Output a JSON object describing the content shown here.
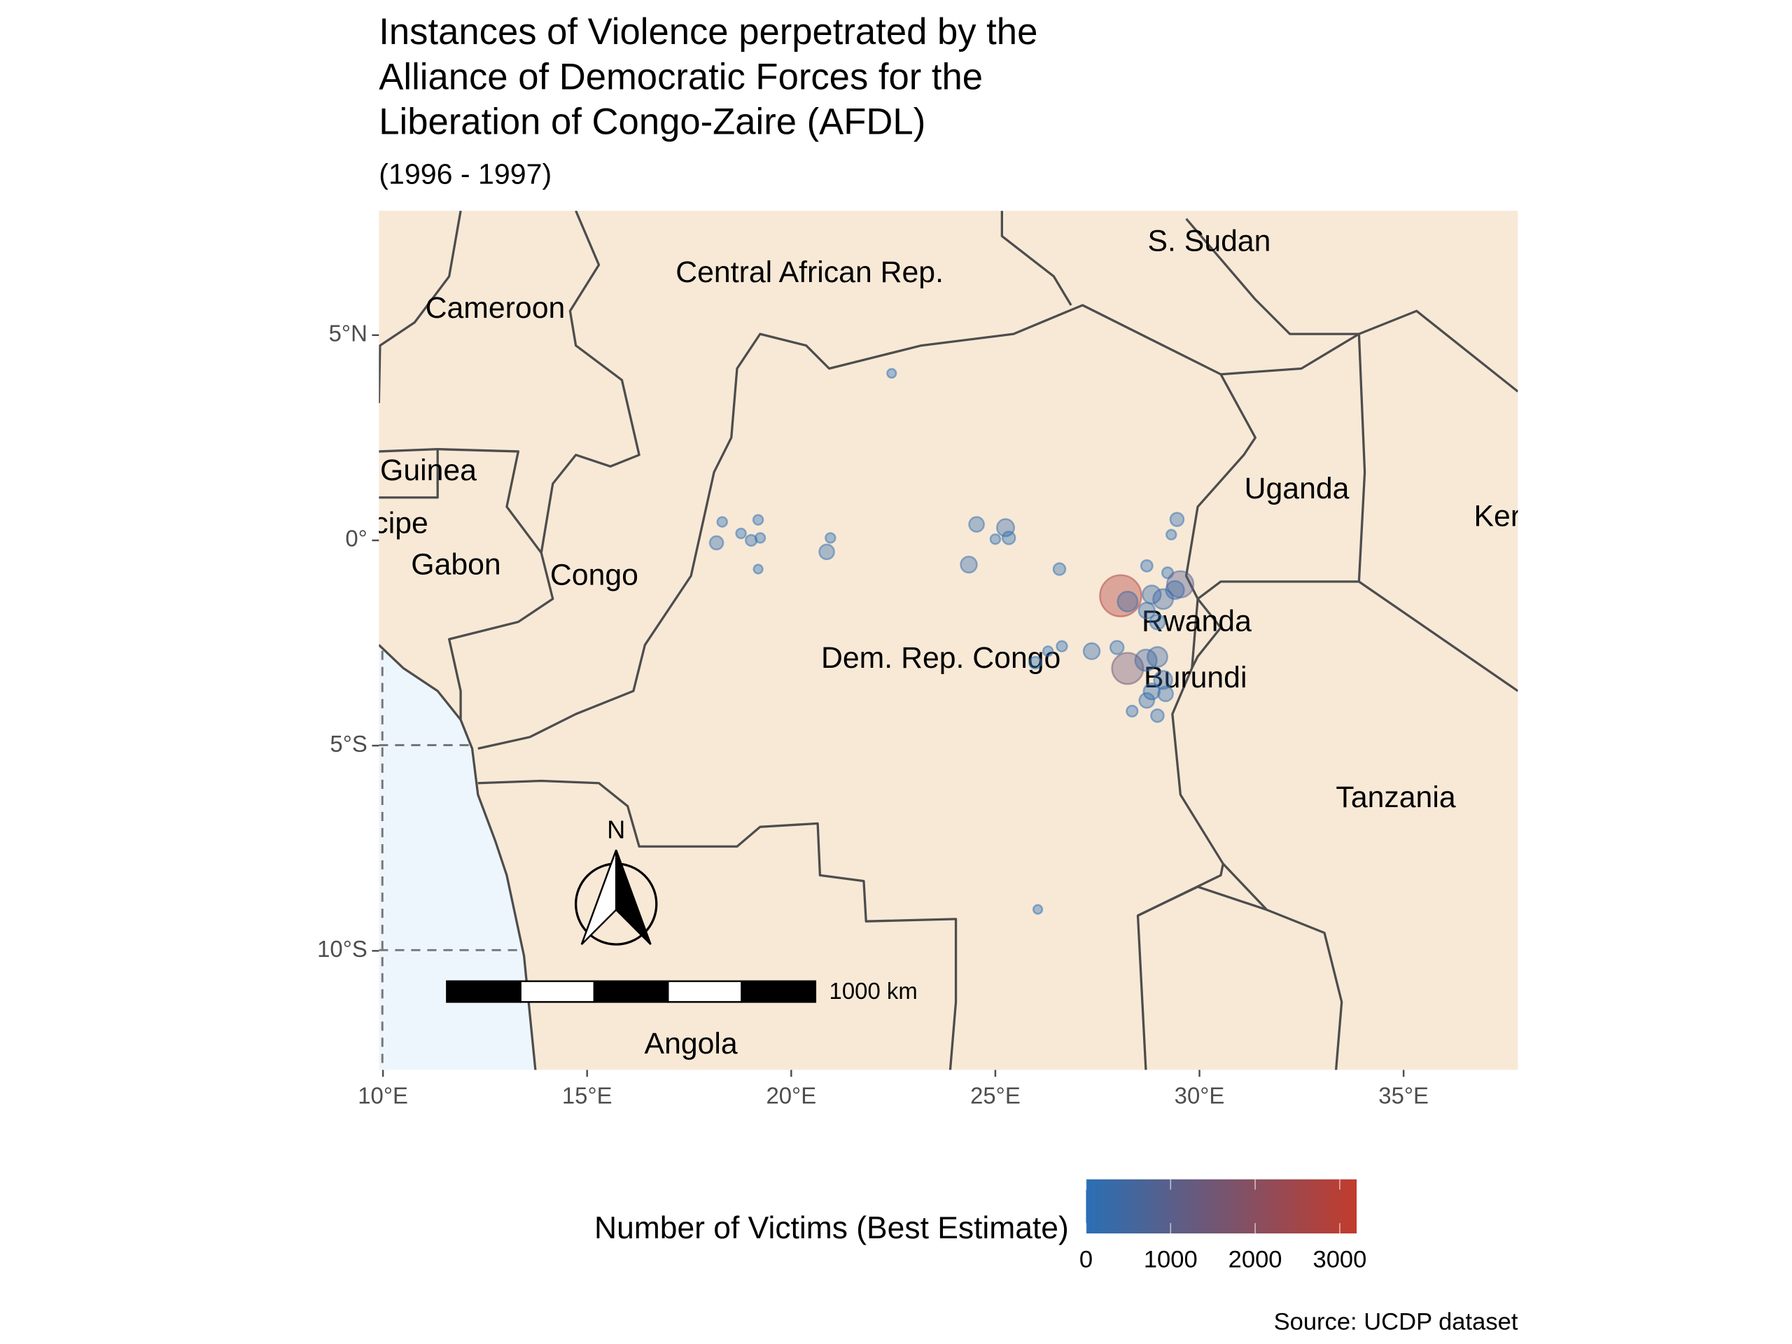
{
  "chart_data": {
    "type": "scatter",
    "title": [
      "Instances of Violence perpetrated by the",
      "Alliance of Democratic Forces for the",
      "Liberation of Congo-Zaire (AFDL)"
    ],
    "subtitle": "(1996 - 1997)",
    "caption": "Source: UCDP dataset",
    "legend_title": "Number of Victims (Best Estimate)",
    "colors": [
      "#2a6fb5",
      "#c23b2c"
    ],
    "colorlim": [
      0,
      3200
    ],
    "colorticks": [
      0,
      1000,
      2000,
      3000
    ],
    "xlim": [
      9.9,
      37.8
    ],
    "ylim": [
      -12.9,
      8.03
    ],
    "xticks": [
      {
        "value": 10,
        "label": "10°E"
      },
      {
        "value": 15,
        "label": "15°E"
      },
      {
        "value": 20,
        "label": "20°E"
      },
      {
        "value": 25,
        "label": "25°E"
      },
      {
        "value": 30,
        "label": "30°E"
      },
      {
        "value": 35,
        "label": "35°E"
      }
    ],
    "yticks": [
      {
        "value": 5,
        "label": "5°N"
      },
      {
        "value": 0,
        "label": "0°"
      },
      {
        "value": -5,
        "label": "5°S"
      },
      {
        "value": -10,
        "label": "10°S"
      }
    ],
    "country_labels": [
      "S. Sudan",
      "Central African Rep.",
      "Cameroon",
      "Guinea",
      "cipe",
      "Gabon",
      "Congo",
      "Uganda",
      "Ker",
      "Rwanda",
      "Dem. Rep. Congo",
      "Burundi",
      "Tanzania",
      "Angola"
    ],
    "north_label": "N",
    "scale_label": "1000 km",
    "x": [
      22.46,
      18.31,
      18.17,
      18.77,
      19.19,
      19.02,
      19.24,
      19.19,
      20.96,
      20.87,
      24.54,
      25.25,
      25.33,
      25.0,
      24.35,
      26.57,
      29.45,
      29.31,
      28.71,
      29.22,
      29.53,
      28.07,
      28.24,
      28.83,
      29.11,
      29.4,
      28.71,
      28.97,
      27.98,
      27.36,
      26.63,
      26.29,
      25.98,
      28.24,
      28.69,
      28.97,
      29.11,
      28.83,
      29.17,
      28.71,
      28.35,
      28.97,
      26.04
    ],
    "values": [
      4.07,
      0.45,
      -0.06,
      0.17,
      0.5,
      0,
      0.06,
      -0.7,
      0.06,
      -0.28,
      0.39,
      0.31,
      0.06,
      0.03,
      -0.59,
      -0.7,
      0.51,
      0.14,
      -0.62,
      -0.79,
      -1.07,
      -1.35,
      -1.49,
      -1.32,
      -1.43,
      -1.21,
      -1.71,
      -1.99,
      -2.61,
      -2.7,
      -2.58,
      -2.7,
      -2.98,
      -3.12,
      -2.92,
      -2.84,
      -3.4,
      -3.68,
      -3.74,
      -3.9,
      -4.16,
      -4.27,
      -8.99
    ],
    "victims": [
      10,
      20,
      100,
      20,
      20,
      40,
      20,
      10,
      20,
      150,
      150,
      250,
      80,
      20,
      200,
      60,
      100,
      20,
      50,
      40,
      900,
      2800,
      400,
      300,
      400,
      300,
      200,
      150,
      100,
      200,
      30,
      20,
      60,
      1400,
      500,
      400,
      300,
      200,
      150,
      150,
      40,
      80,
      10
    ]
  }
}
